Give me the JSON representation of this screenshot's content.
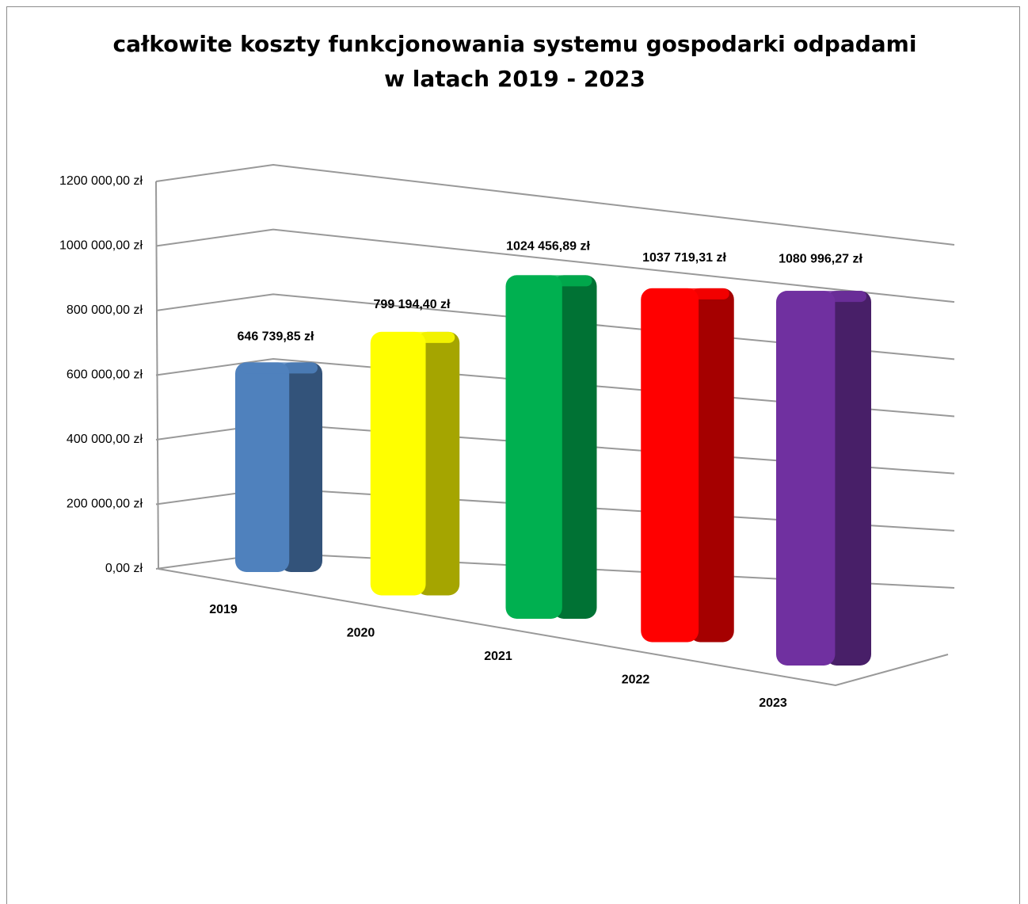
{
  "chart_data": {
    "type": "bar3d",
    "title": "całkowite koszty funkcjonowania systemu gospodarki odpadami w latach 2019 - 2023",
    "categories": [
      "2019",
      "2020",
      "2021",
      "2022",
      "2023"
    ],
    "values": [
      646739.85,
      799194.4,
      1024456.89,
      1037719.31,
      1080996.27
    ],
    "value_labels": [
      "646 739,85 zł",
      "799 194,40 zł",
      "1024 456,89 zł",
      "1037 719,31 zł",
      "1080 996,27 zł"
    ],
    "colors": [
      "#4f81bd",
      "#ffff00",
      "#00b050",
      "#ff0000",
      "#7030a0"
    ],
    "ylim": [
      0,
      1200000
    ],
    "yticks": [
      {
        "value": 0,
        "label": "0,00 zł"
      },
      {
        "value": 200000,
        "label": "200 000,00 zł"
      },
      {
        "value": 400000,
        "label": "400 000,00 zł"
      },
      {
        "value": 600000,
        "label": "600 000,00 zł"
      },
      {
        "value": 800000,
        "label": "800 000,00 zł"
      },
      {
        "value": 1000000,
        "label": "1000 000,00 zł"
      },
      {
        "value": 1200000,
        "label": "1200 000,00 zł"
      }
    ],
    "grid": true
  }
}
